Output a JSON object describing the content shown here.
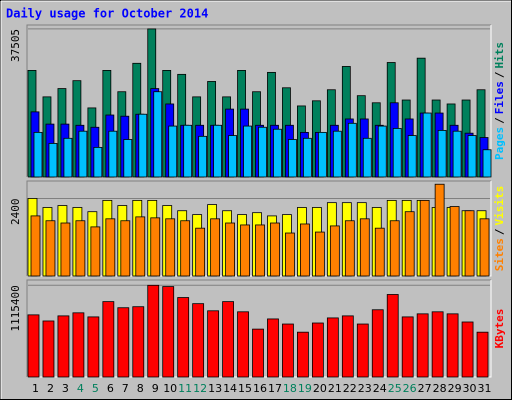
{
  "title": "Daily usage for October 2014",
  "chart_data": [
    {
      "type": "bar",
      "ylim": [
        0,
        38500
      ],
      "yticks": [
        37505
      ],
      "grid": true,
      "legend_separator": "/",
      "series": [
        {
          "name": "Pages",
          "color": "#00C0FF",
          "values": [
            11300,
            8500,
            9800,
            11600,
            7500,
            11600,
            9500,
            15900,
            21600,
            12900,
            13100,
            10300,
            13100,
            10500,
            12900,
            12600,
            12100,
            9500,
            9800,
            11300,
            11600,
            13600,
            9800,
            12900,
            12300,
            10500,
            16200,
            11800,
            11600,
            10500,
            6900
          ]
        },
        {
          "name": "Files",
          "color": "#0000FF",
          "values": [
            16500,
            13400,
            13400,
            13100,
            12600,
            15700,
            15400,
            15900,
            22400,
            18500,
            13100,
            13100,
            13100,
            17200,
            17200,
            13100,
            13100,
            13100,
            11300,
            11300,
            13100,
            14700,
            14700,
            13100,
            18800,
            14700,
            16200,
            16200,
            13100,
            11100,
            10000
          ]
        },
        {
          "name": "Hits",
          "color": "#00805C",
          "values": [
            27000,
            20300,
            22400,
            24400,
            17500,
            27000,
            21600,
            28800,
            37505,
            27000,
            26000,
            20300,
            24200,
            20300,
            27000,
            21600,
            26500,
            22600,
            18000,
            19300,
            22100,
            28000,
            20600,
            18800,
            29000,
            19500,
            30100,
            19500,
            18500,
            19500,
            22100
          ]
        }
      ]
    },
    {
      "type": "bar",
      "ylim": [
        0,
        2940
      ],
      "yticks": [
        2400
      ],
      "grid": true,
      "legend_separator": "/",
      "series": [
        {
          "name": "Sites",
          "color": "#FF8000",
          "values": [
            1860,
            1710,
            1640,
            1710,
            1520,
            1770,
            1710,
            1830,
            1800,
            1770,
            1710,
            1480,
            1770,
            1640,
            1580,
            1580,
            1640,
            1330,
            1610,
            1360,
            1550,
            1710,
            1770,
            1480,
            1710,
            1990,
            2340,
            2840,
            2150,
            2020,
            1770
          ]
        },
        {
          "name": "Visits",
          "color": "#FFFF00",
          "values": [
            2400,
            2120,
            2180,
            2120,
            1990,
            2340,
            2180,
            2340,
            2340,
            2180,
            2020,
            1900,
            2210,
            2020,
            1900,
            1960,
            1860,
            1900,
            2120,
            2120,
            2270,
            2270,
            2270,
            2120,
            2340,
            2340,
            2340,
            2120,
            2120,
            2020,
            2020
          ]
        }
      ]
    },
    {
      "type": "bar",
      "ylim": [
        0,
        1180000
      ],
      "yticks": [
        1115400
      ],
      "grid": true,
      "legend_separator": "/",
      "categories": [
        "1",
        "2",
        "3",
        "4",
        "5",
        "6",
        "7",
        "8",
        "9",
        "10",
        "11",
        "12",
        "13",
        "14",
        "15",
        "16",
        "17",
        "18",
        "19",
        "20",
        "21",
        "22",
        "23",
        "24",
        "25",
        "26",
        "27",
        "28",
        "29",
        "30",
        "31"
      ],
      "category_colors": [
        "#000000",
        "#000000",
        "#000000",
        "#00805C",
        "#00805C",
        "#000000",
        "#000000",
        "#000000",
        "#000000",
        "#000000",
        "#00805C",
        "#00805C",
        "#000000",
        "#000000",
        "#000000",
        "#000000",
        "#000000",
        "#00805C",
        "#00805C",
        "#000000",
        "#000000",
        "#000000",
        "#000000",
        "#000000",
        "#00805C",
        "#00805C",
        "#000000",
        "#000000",
        "#000000",
        "#000000",
        "#000000"
      ],
      "series": [
        {
          "name": "KBytes",
          "color": "#FF0000",
          "values": [
            756000,
            681600,
            743600,
            780800,
            731200,
            917100,
            842700,
            855100,
            1115400,
            1100000,
            966700,
            892300,
            805500,
            917100,
            793200,
            582500,
            706400,
            644400,
            545300,
            656800,
            718800,
            743600,
            644400,
            818000,
            1003800,
            731200,
            768400,
            793200,
            768400,
            669200,
            545300
          ]
        }
      ]
    }
  ]
}
